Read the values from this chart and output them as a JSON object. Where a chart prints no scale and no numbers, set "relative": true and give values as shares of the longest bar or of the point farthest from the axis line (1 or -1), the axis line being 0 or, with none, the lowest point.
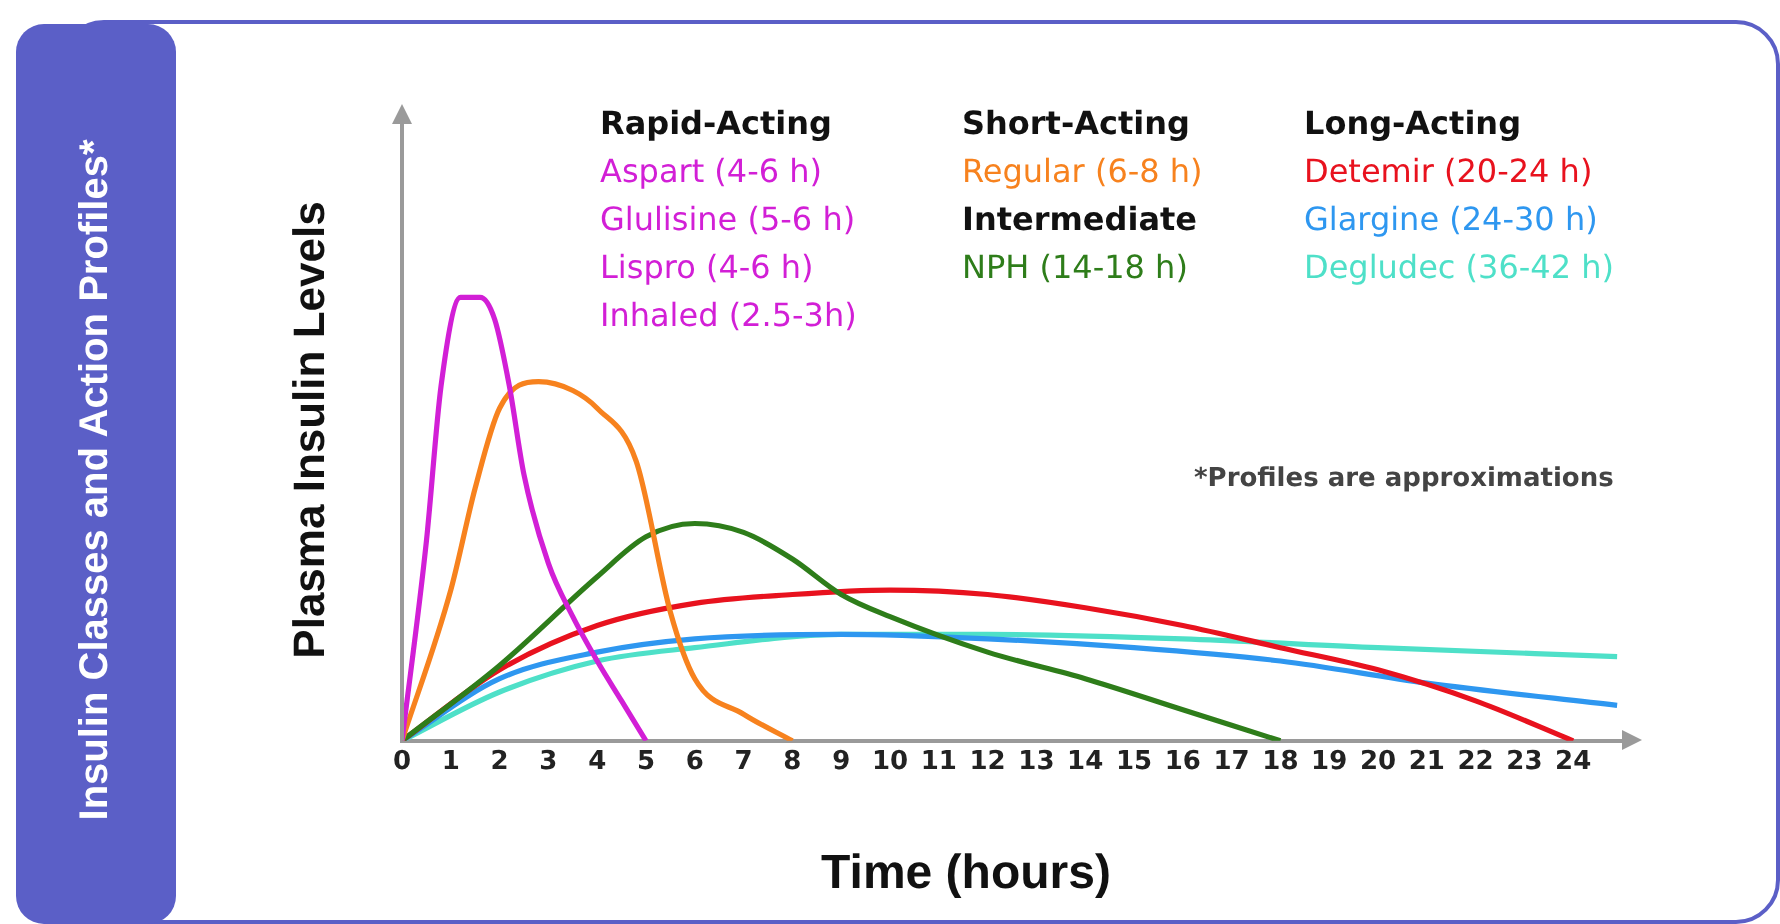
{
  "chart_data": {
    "type": "line",
    "title": "Insulin Classes and Action Profiles*",
    "xlabel": "Time (hours)",
    "ylabel": "Plasma Insulin Levels",
    "relative": true,
    "xlim": [
      0,
      25
    ],
    "xticks": [
      0,
      1,
      2,
      3,
      4,
      5,
      6,
      7,
      8,
      9,
      10,
      11,
      12,
      13,
      14,
      15,
      16,
      17,
      18,
      19,
      20,
      21,
      22,
      23,
      24
    ],
    "grid": false,
    "legend": "top",
    "marker": "none",
    "line_style": "solid",
    "series": [
      {
        "name": "Aspart (4-6 h)",
        "color": "#d21fd6",
        "x": [
          0,
          0.5,
          0.8,
          1.2,
          1.6,
          1.9,
          2.2,
          2.5,
          3,
          3.5,
          4,
          4.5,
          5
        ],
        "values": [
          0,
          0.45,
          0.8,
          1,
          1,
          0.95,
          0.8,
          0.6,
          0.4,
          0.28,
          0.18,
          0.09,
          0
        ]
      },
      {
        "name": "Regular (6-8 h)",
        "color": "#f7821e",
        "x": [
          0,
          1,
          1.5,
          2,
          2.8,
          3.5,
          4,
          4.8,
          5.5,
          6,
          7,
          8
        ],
        "values": [
          0,
          0.34,
          0.57,
          0.75,
          0.81,
          0.79,
          0.75,
          0.63,
          0.29,
          0.14,
          0.06,
          0
        ]
      },
      {
        "name": "NPH (14-18 h)",
        "color": "#2e7d1a",
        "x": [
          0,
          2,
          4,
          5,
          6,
          7,
          8,
          9,
          10,
          12,
          14,
          16,
          18
        ],
        "values": [
          0,
          0.17,
          0.37,
          0.46,
          0.49,
          0.47,
          0.41,
          0.33,
          0.28,
          0.2,
          0.14,
          0.07,
          0
        ]
      },
      {
        "name": "Detemir (20-24 h)",
        "color": "#e8121e",
        "x": [
          0,
          2,
          4,
          6,
          8,
          10,
          12,
          14,
          16,
          18,
          20,
          22,
          24
        ],
        "values": [
          0,
          0.16,
          0.26,
          0.31,
          0.33,
          0.34,
          0.33,
          0.3,
          0.26,
          0.21,
          0.16,
          0.09,
          0
        ]
      },
      {
        "name": "Glargine (24-30 h)",
        "color": "#2e97f0",
        "x": [
          0,
          2,
          4,
          6,
          9,
          12,
          15,
          18,
          21,
          24.9
        ],
        "values": [
          0,
          0.14,
          0.2,
          0.23,
          0.24,
          0.23,
          0.21,
          0.18,
          0.13,
          0.08
        ]
      },
      {
        "name": "Degludec (36-42 h)",
        "color": "#4ee0c8",
        "x": [
          0,
          2,
          4,
          6,
          9,
          12,
          16,
          20,
          24.9
        ],
        "values": [
          0,
          0.11,
          0.18,
          0.21,
          0.24,
          0.24,
          0.23,
          0.21,
          0.19
        ]
      }
    ],
    "annotations": [
      "Rapid-Acting",
      "Glulisine (5-6 h)",
      "Lispro (4-6 h)",
      "Inhaled (2.5-3h)",
      "Short-Acting",
      "Intermediate",
      "Long-Acting",
      "*Profiles are approximations"
    ]
  }
}
